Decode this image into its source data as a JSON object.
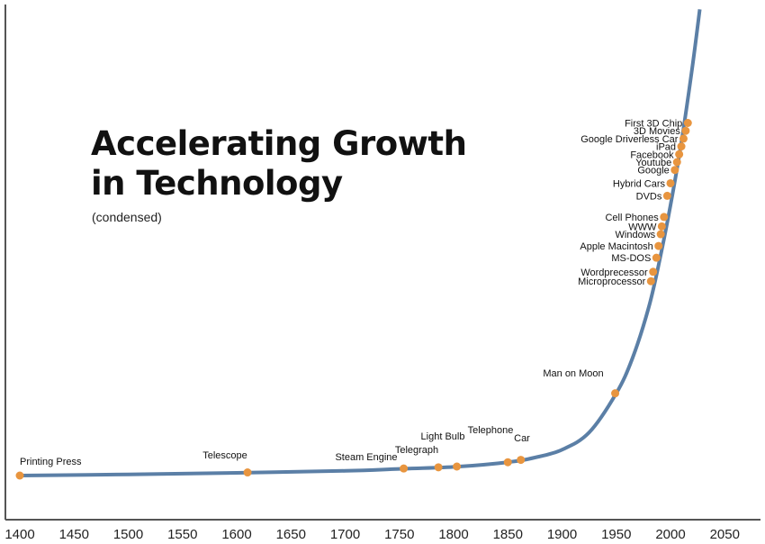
{
  "chart_data": {
    "type": "line",
    "title": "Accelerating Growth in Technology",
    "subtitle": "(condensed)",
    "xlabel": "",
    "ylabel": "",
    "xlim": [
      1395,
      2070
    ],
    "x_ticks": [
      1400,
      1450,
      1500,
      1550,
      1600,
      1650,
      1700,
      1750,
      1800,
      1850,
      1900,
      1950,
      2000,
      2050
    ],
    "y_axis_values_shown": false,
    "grid": false,
    "colors": {
      "curve": "#5b7fa6",
      "marker": "#e8953f",
      "axis": "#555555"
    },
    "curve": {
      "x": [
        1400,
        1500,
        1600,
        1700,
        1750,
        1800,
        1850,
        1875,
        1900,
        1925,
        1950,
        1965,
        1980,
        1990,
        2000,
        2010,
        2020,
        2027
      ],
      "y": [
        0.0,
        0.015,
        0.035,
        0.06,
        0.085,
        0.11,
        0.17,
        0.23,
        0.33,
        0.55,
        1.05,
        1.5,
        2.15,
        2.75,
        3.45,
        4.25,
        5.2,
        5.95
      ]
    },
    "events": [
      {
        "name": "Printing Press",
        "year": 1400,
        "level": 0.0
      },
      {
        "name": "Telescope",
        "year": 1610,
        "level": 0.04
      },
      {
        "name": "Steam Engine",
        "year": 1754,
        "level": 0.09
      },
      {
        "name": "Telegraph",
        "year": 1786,
        "level": 0.105
      },
      {
        "name": "Light Bulb",
        "year": 1803,
        "level": 0.115
      },
      {
        "name": "Telephone",
        "year": 1850,
        "level": 0.17
      },
      {
        "name": "Car",
        "year": 1862,
        "level": 0.2
      },
      {
        "name": "Man on Moon",
        "year": 1949,
        "level": 1.05
      },
      {
        "name": "Microprocessor",
        "year": 1982,
        "level": 2.48
      },
      {
        "name": "Wordprecessor",
        "year": 1984,
        "level": 2.6
      },
      {
        "name": "MS-DOS",
        "year": 1987,
        "level": 2.78
      },
      {
        "name": "Apple Macintosh",
        "year": 1989,
        "level": 2.93
      },
      {
        "name": "Windows",
        "year": 1991,
        "level": 3.08
      },
      {
        "name": "WWW",
        "year": 1992,
        "level": 3.18
      },
      {
        "name": "Cell Phones",
        "year": 1994,
        "level": 3.3
      },
      {
        "name": "DVDs",
        "year": 1997,
        "level": 3.57
      },
      {
        "name": "Hybrid Cars",
        "year": 2000,
        "level": 3.73
      },
      {
        "name": "Google",
        "year": 2004,
        "level": 3.9
      },
      {
        "name": "Youtube",
        "year": 2006,
        "level": 4.0
      },
      {
        "name": "Facebook",
        "year": 2008,
        "level": 4.1
      },
      {
        "name": "iPad",
        "year": 2010,
        "level": 4.2
      },
      {
        "name": "Google Driverless Car",
        "year": 2012,
        "level": 4.3
      },
      {
        "name": "3D Movies",
        "year": 2014,
        "level": 4.4
      },
      {
        "name": "First 3D Chip",
        "year": 2016,
        "level": 4.5
      }
    ]
  }
}
